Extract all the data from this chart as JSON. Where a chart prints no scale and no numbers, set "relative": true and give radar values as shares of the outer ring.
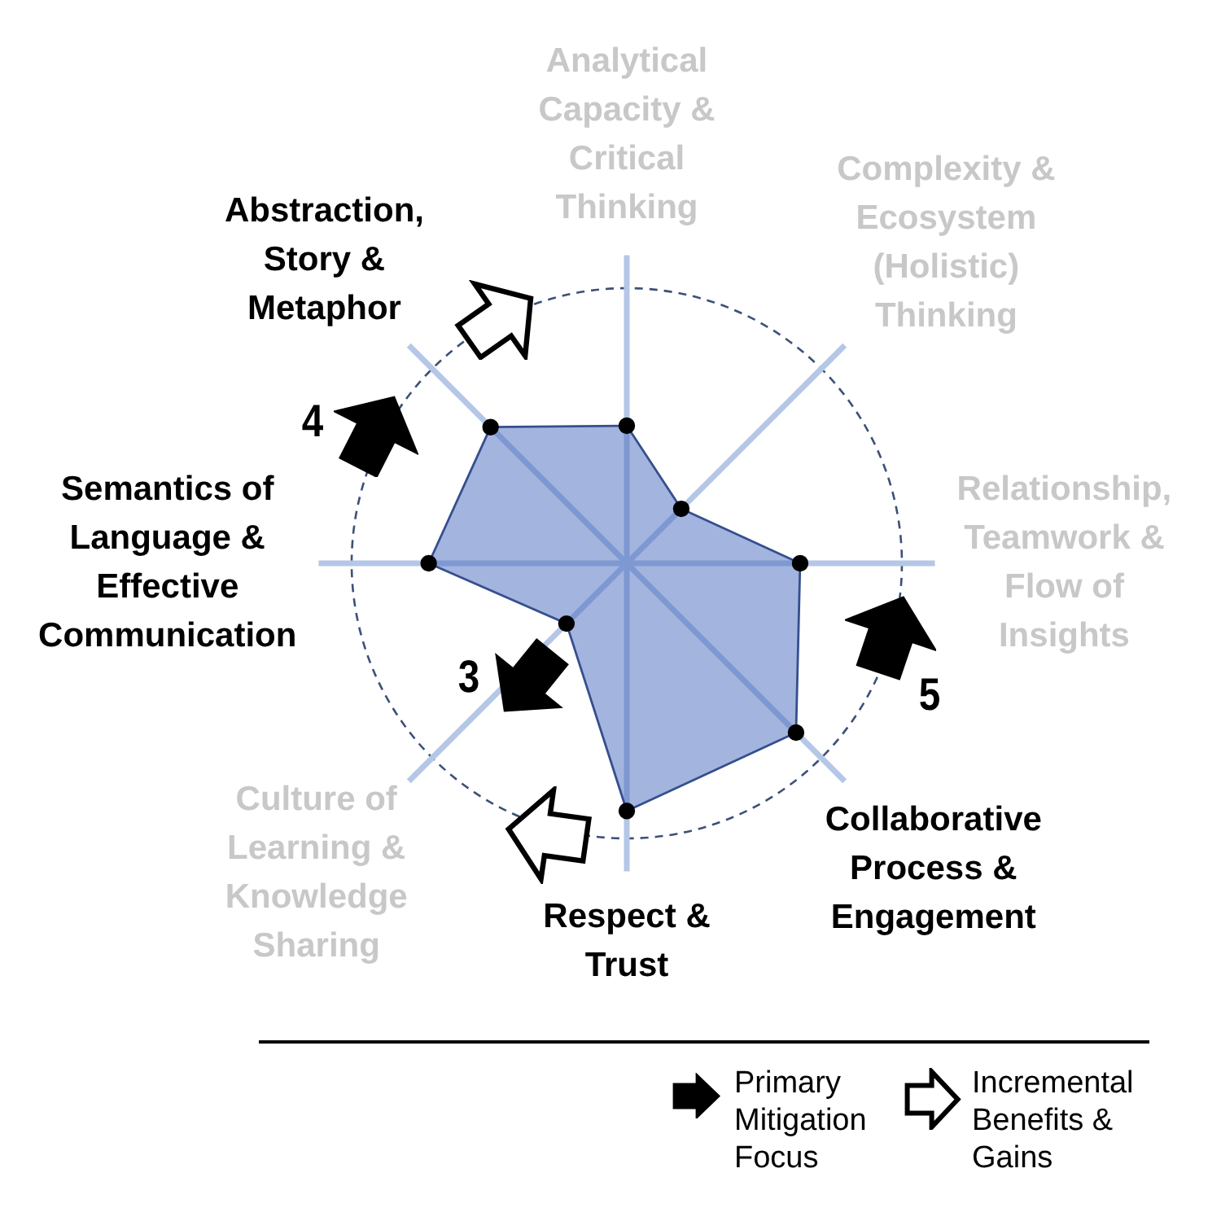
{
  "chart_data": {
    "type": "radar",
    "relative": true,
    "categories": [
      "Analytical Capacity & Critical Thinking",
      "Complexity & Ecosystem (Holistic) Thinking",
      "Relationship, Teamwork & Flow of Insights",
      "Collaborative Process & Engagement",
      "Respect & Trust",
      "Culture of Learning & Knowledge Sharing",
      "Semantics of Language & Effective Communication",
      "Abstraction, Story & Metaphor"
    ],
    "series": [
      {
        "color": "#a3b4de",
        "values": [
          0.5,
          0.28,
          0.63,
          0.87,
          0.9,
          0.31,
          0.72,
          0.7
        ]
      }
    ],
    "marker": "circle",
    "grid": true,
    "annotations": [
      "4",
      "3",
      "5",
      "Primary Mitigation Focus",
      "Incremental Benefits & Gains"
    ]
  }
}
